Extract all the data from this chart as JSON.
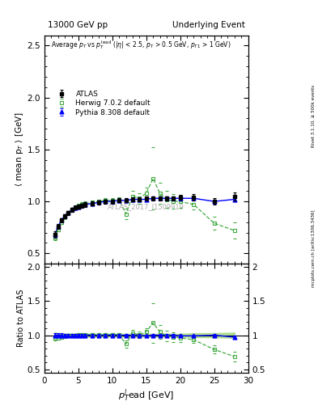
{
  "title_left": "13000 GeV pp",
  "title_right": "Underlying Event",
  "ylabel_main": "⟨ mean p$_T$ ⟩ [GeV]",
  "ylabel_ratio": "Ratio to ATLAS",
  "xlabel": "$p_T^l$ead [GeV]",
  "watermark": "ATLAS_2017_I1509919",
  "right_label_top": "Rivet 3.1.10, ≥ 500k events",
  "right_label_bottom": "mcplots.cern.ch [arXiv:1306.3436]",
  "annotation": "Average $p_T$ vs $p_T^{lead}$ ($|\\eta|$ < 2.5, $p_T$ > 0.5 GeV, $p_{T1}$ > 1 GeV)",
  "ylim_main": [
    0.4,
    2.6
  ],
  "ylim_ratio": [
    0.45,
    2.05
  ],
  "xlim": [
    0,
    30
  ],
  "atlas_x": [
    1.5,
    2.0,
    2.5,
    3.0,
    3.5,
    4.0,
    4.5,
    5.0,
    5.5,
    6.0,
    7.0,
    8.0,
    9.0,
    10.0,
    11.0,
    12.0,
    13.0,
    14.0,
    15.0,
    16.0,
    17.0,
    18.0,
    19.0,
    20.0,
    22.0,
    25.0,
    28.0
  ],
  "atlas_y": [
    0.68,
    0.76,
    0.82,
    0.86,
    0.89,
    0.92,
    0.94,
    0.95,
    0.96,
    0.97,
    0.98,
    0.99,
    1.0,
    1.0,
    1.01,
    1.01,
    1.02,
    1.02,
    1.03,
    1.03,
    1.03,
    1.03,
    1.03,
    1.04,
    1.04,
    1.0,
    1.05
  ],
  "atlas_yerr": [
    0.03,
    0.02,
    0.02,
    0.02,
    0.02,
    0.02,
    0.02,
    0.02,
    0.02,
    0.02,
    0.02,
    0.02,
    0.02,
    0.02,
    0.02,
    0.02,
    0.02,
    0.02,
    0.02,
    0.02,
    0.02,
    0.02,
    0.02,
    0.02,
    0.03,
    0.03,
    0.04
  ],
  "herwig_x": [
    1.5,
    2.0,
    2.5,
    3.0,
    3.5,
    4.0,
    4.5,
    5.0,
    5.5,
    6.0,
    7.0,
    8.0,
    9.0,
    10.0,
    11.0,
    12.0,
    13.0,
    14.0,
    15.0,
    16.0,
    17.0,
    18.0,
    19.0,
    20.0,
    22.0,
    25.0,
    28.0
  ],
  "herwig_y": [
    0.65,
    0.73,
    0.8,
    0.85,
    0.89,
    0.92,
    0.94,
    0.96,
    0.97,
    0.98,
    0.99,
    1.0,
    1.01,
    1.01,
    1.02,
    0.88,
    1.05,
    1.03,
    1.08,
    1.22,
    1.08,
    1.02,
    1.0,
    1.0,
    0.97,
    0.79,
    0.72
  ],
  "herwig_yerr": [
    0.02,
    0.02,
    0.02,
    0.02,
    0.02,
    0.02,
    0.02,
    0.02,
    0.02,
    0.02,
    0.02,
    0.02,
    0.02,
    0.02,
    0.02,
    0.05,
    0.05,
    0.05,
    0.05,
    0.3,
    0.1,
    0.08,
    0.07,
    0.06,
    0.05,
    0.06,
    0.08
  ],
  "pythia_x": [
    1.5,
    2.0,
    2.5,
    3.0,
    3.5,
    4.0,
    4.5,
    5.0,
    5.5,
    6.0,
    7.0,
    8.0,
    9.0,
    10.0,
    11.0,
    12.0,
    13.0,
    14.0,
    15.0,
    16.0,
    17.0,
    18.0,
    19.0,
    20.0,
    22.0,
    25.0,
    28.0
  ],
  "pythia_y": [
    0.68,
    0.76,
    0.82,
    0.86,
    0.89,
    0.92,
    0.94,
    0.95,
    0.96,
    0.97,
    0.98,
    0.99,
    1.0,
    1.0,
    1.01,
    1.01,
    1.02,
    1.02,
    1.02,
    1.03,
    1.03,
    1.03,
    1.03,
    1.03,
    1.03,
    1.0,
    1.02
  ],
  "pythia_yerr": [
    0.02,
    0.02,
    0.02,
    0.02,
    0.02,
    0.02,
    0.02,
    0.02,
    0.02,
    0.02,
    0.02,
    0.02,
    0.02,
    0.02,
    0.02,
    0.02,
    0.02,
    0.02,
    0.02,
    0.02,
    0.02,
    0.02,
    0.02,
    0.02,
    0.02,
    0.02,
    0.02
  ],
  "atlas_color": "black",
  "herwig_color": "#44aa44",
  "pythia_color": "blue",
  "ratio_band_color": "#cceecc",
  "ratio_line_color": "#aadd88",
  "yticks_main": [
    0.5,
    1.0,
    1.5,
    2.0,
    2.5
  ],
  "yticks_ratio": [
    0.5,
    1.0,
    1.5,
    2.0
  ],
  "xticks": [
    0,
    5,
    10,
    15,
    20,
    25,
    30
  ]
}
